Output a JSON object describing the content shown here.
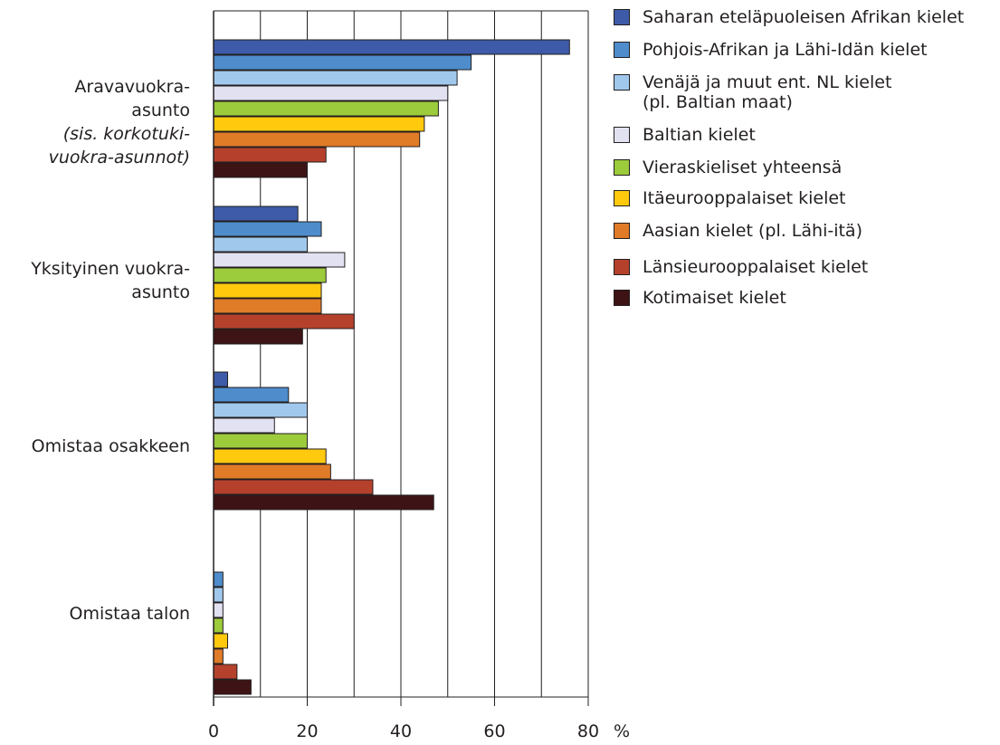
{
  "chart_data": {
    "type": "bar",
    "orientation": "horizontal",
    "categories": [
      {
        "lines": [
          "Aravavuokra-",
          "asunto"
        ],
        "italic_lines": [
          "(sis. korkotuki-",
          "vuokra-asunnot)"
        ]
      },
      {
        "lines": [
          "Yksityinen vuokra-",
          "asunto"
        ],
        "italic_lines": []
      },
      {
        "lines": [
          "Omistaa osakkeen"
        ],
        "italic_lines": []
      },
      {
        "lines": [
          "Omistaa talon"
        ],
        "italic_lines": []
      }
    ],
    "series": [
      {
        "name": "Saharan eteläpuoleisen Afrikan kielet",
        "color": "#3d5ba9",
        "values": [
          76,
          18,
          3,
          0
        ]
      },
      {
        "name": "Pohjois-Afrikan ja Lähi-Idän kielet",
        "color": "#4e8ccb",
        "values": [
          55,
          23,
          16,
          2
        ]
      },
      {
        "name": "Venäjä ja muut ent. NL kielet\n(pl. Baltian maat)",
        "color": "#a0c8ec",
        "values": [
          52,
          20,
          20,
          2
        ]
      },
      {
        "name": "Baltian kielet",
        "color": "#e1e1f1",
        "values": [
          50,
          28,
          13,
          2
        ]
      },
      {
        "name": "Vieraskieliset yhteensä",
        "color": "#9ccb3b",
        "values": [
          48,
          24,
          20,
          2
        ]
      },
      {
        "name": "Itäeurooppalaiset kielet",
        "color": "#ffc90e",
        "values": [
          45,
          23,
          24,
          3
        ]
      },
      {
        "name": "Aasian kielet (pl. Lähi-itä)",
        "color": "#e07b28",
        "values": [
          44,
          23,
          25,
          2
        ]
      },
      {
        "name": "Länsieurooppalaiset kielet",
        "color": "#b5412c",
        "values": [
          24,
          30,
          34,
          5
        ]
      },
      {
        "name": "Kotimaiset kielet",
        "color": "#3d1315",
        "values": [
          20,
          19,
          47,
          8
        ]
      }
    ],
    "xlim": [
      0,
      80
    ],
    "xticks": [
      "0",
      "20",
      "40",
      "60",
      "80"
    ],
    "xunit": "%",
    "grid": true,
    "legend_position": "right"
  }
}
